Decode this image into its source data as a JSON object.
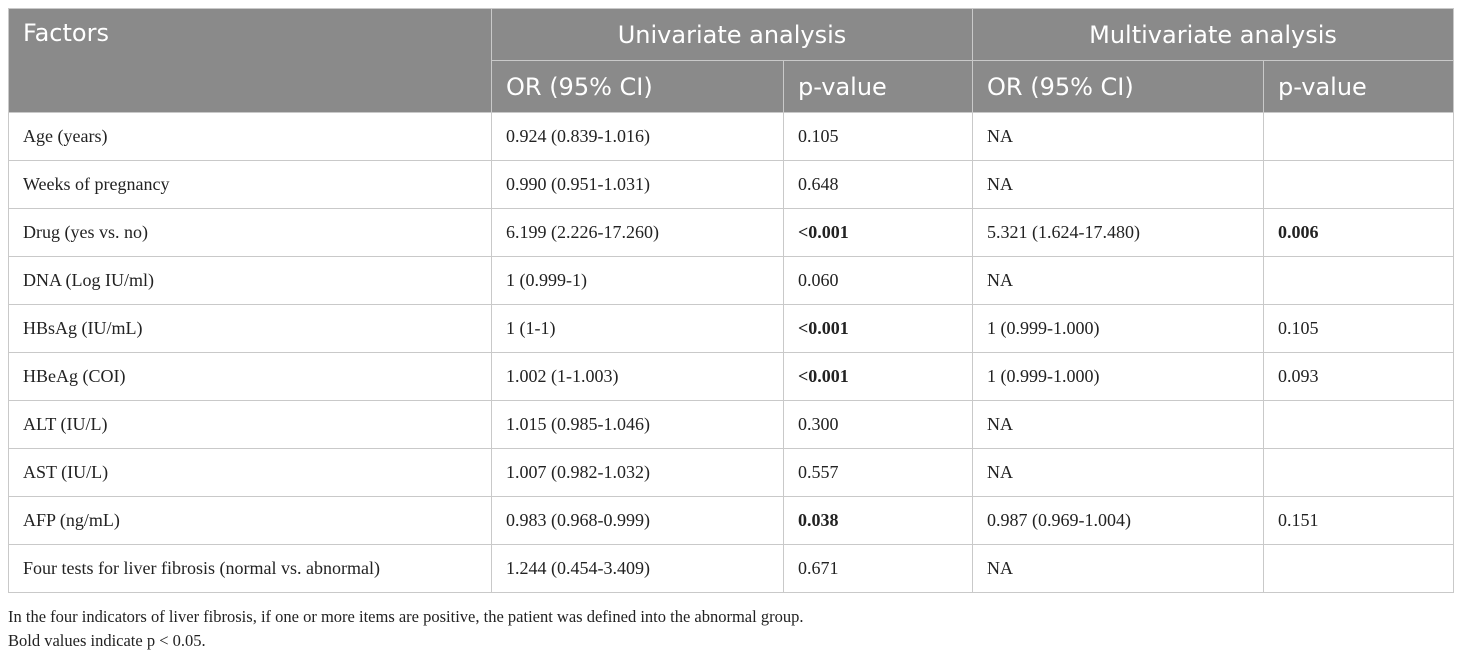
{
  "header": {
    "factors": "Factors",
    "univariate": "Univariate analysis",
    "multivariate": "Multivariate analysis",
    "or_ci": "OR (95% CI)",
    "p_value": "p-value"
  },
  "rows": [
    {
      "factor": "Age (years)",
      "uni_or": "0.924 (0.839-1.016)",
      "uni_p": "0.105",
      "uni_p_bold": false,
      "multi_or": "NA",
      "multi_p": "",
      "multi_p_bold": false
    },
    {
      "factor": "Weeks of pregnancy",
      "uni_or": "0.990 (0.951-1.031)",
      "uni_p": "0.648",
      "uni_p_bold": false,
      "multi_or": "NA",
      "multi_p": "",
      "multi_p_bold": false
    },
    {
      "factor": "Drug (yes vs. no)",
      "uni_or": "6.199 (2.226-17.260)",
      "uni_p": "<0.001",
      "uni_p_bold": true,
      "multi_or": "5.321 (1.624-17.480)",
      "multi_p": "0.006",
      "multi_p_bold": true
    },
    {
      "factor": "DNA (Log IU/ml)",
      "uni_or": "1 (0.999-1)",
      "uni_p": "0.060",
      "uni_p_bold": false,
      "multi_or": "NA",
      "multi_p": "",
      "multi_p_bold": false
    },
    {
      "factor": "HBsAg (IU/mL)",
      "uni_or": "1 (1-1)",
      "uni_p": "<0.001",
      "uni_p_bold": true,
      "multi_or": "1 (0.999-1.000)",
      "multi_p": "0.105",
      "multi_p_bold": false
    },
    {
      "factor": "HBeAg (COI)",
      "uni_or": "1.002 (1-1.003)",
      "uni_p": "<0.001",
      "uni_p_bold": true,
      "multi_or": "1 (0.999-1.000)",
      "multi_p": "0.093",
      "multi_p_bold": false
    },
    {
      "factor": "ALT (IU/L)",
      "uni_or": "1.015 (0.985-1.046)",
      "uni_p": "0.300",
      "uni_p_bold": false,
      "multi_or": "NA",
      "multi_p": "",
      "multi_p_bold": false
    },
    {
      "factor": "AST (IU/L)",
      "uni_or": "1.007 (0.982-1.032)",
      "uni_p": "0.557",
      "uni_p_bold": false,
      "multi_or": "NA",
      "multi_p": "",
      "multi_p_bold": false
    },
    {
      "factor": "AFP (ng/mL)",
      "uni_or": "0.983 (0.968-0.999)",
      "uni_p": "0.038",
      "uni_p_bold": true,
      "multi_or": "0.987 (0.969-1.004)",
      "multi_p": "0.151",
      "multi_p_bold": false
    },
    {
      "factor": "Four tests for liver fibrosis (normal vs. abnormal)",
      "uni_or": "1.244 (0.454-3.409)",
      "uni_p": "0.671",
      "uni_p_bold": false,
      "multi_or": "NA",
      "multi_p": "",
      "multi_p_bold": false
    }
  ],
  "notes": [
    "In the four indicators of liver fibrosis, if one or more items are positive, the patient was defined into the abnormal group.",
    "Bold values indicate p < 0.05."
  ]
}
